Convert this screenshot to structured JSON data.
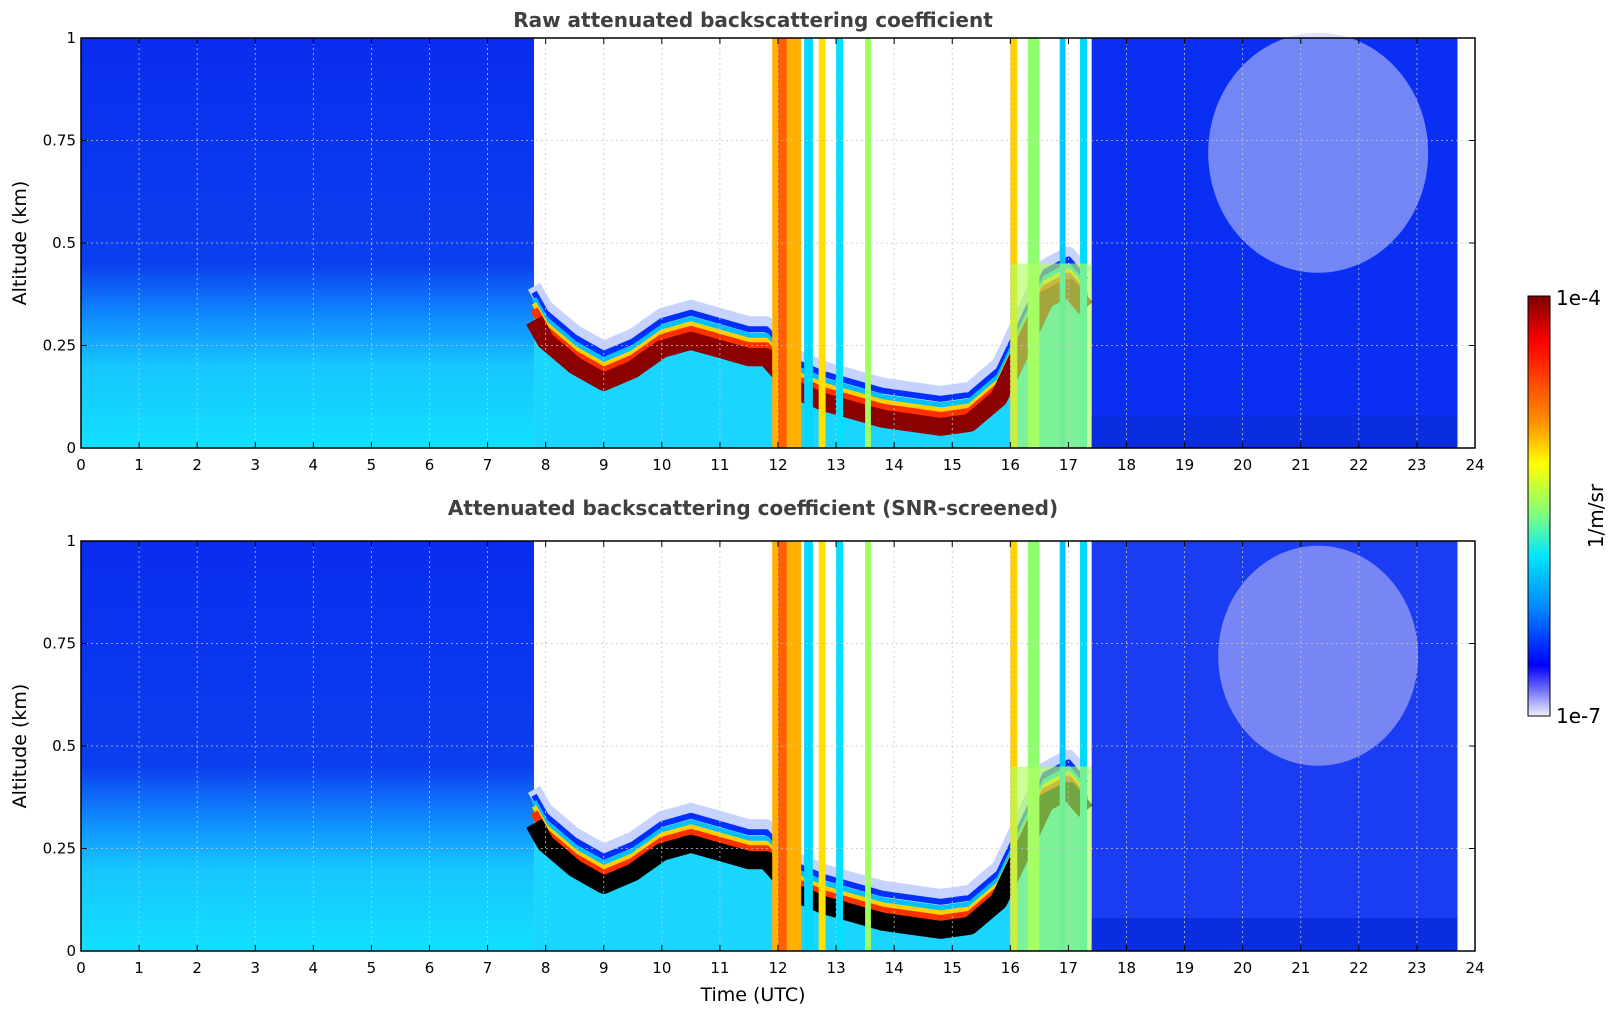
{
  "chart_data": [
    {
      "type": "heatmap",
      "title": "Raw attenuated backscattering coefficient",
      "xlabel": "",
      "ylabel": "Altitude (km)",
      "xlim": [
        0,
        24
      ],
      "ylim": [
        0,
        1
      ],
      "x_ticks": [
        "0",
        "1",
        "2",
        "3",
        "4",
        "5",
        "6",
        "7",
        "8",
        "9",
        "10",
        "11",
        "12",
        "13",
        "14",
        "15",
        "16",
        "17",
        "18",
        "19",
        "20",
        "21",
        "22",
        "23",
        "24"
      ],
      "y_ticks": [
        "0",
        "0.25",
        "0.5",
        "0.75",
        "1"
      ],
      "grid": true,
      "colormap": "jet",
      "layer_height_km": {
        "time_utc": [
          7.8,
          8.0,
          8.5,
          9.0,
          9.5,
          10.0,
          10.5,
          11.0,
          11.5,
          11.8,
          12.3,
          12.8,
          13.3,
          13.8,
          14.3,
          14.8,
          15.3,
          15.8,
          16.2,
          16.6,
          17.0,
          17.3
        ],
        "altitude_km": [
          0.37,
          0.32,
          0.26,
          0.22,
          0.25,
          0.3,
          0.32,
          0.3,
          0.28,
          0.28,
          0.2,
          0.17,
          0.15,
          0.13,
          0.12,
          0.11,
          0.12,
          0.18,
          0.3,
          0.42,
          0.45,
          0.4
        ]
      }
    },
    {
      "type": "heatmap",
      "title": "Attenuated backscattering coefficient (SNR-screened)",
      "xlabel": "Time (UTC)",
      "ylabel": "Altitude (km)",
      "xlim": [
        0,
        24
      ],
      "ylim": [
        0,
        1
      ],
      "x_ticks": [
        "0",
        "1",
        "2",
        "3",
        "4",
        "5",
        "6",
        "7",
        "8",
        "9",
        "10",
        "11",
        "12",
        "13",
        "14",
        "15",
        "16",
        "17",
        "18",
        "19",
        "20",
        "21",
        "22",
        "23",
        "24"
      ],
      "y_ticks": [
        "0",
        "0.25",
        "0.5",
        "0.75",
        "1"
      ],
      "grid": true,
      "colormap": "jet",
      "layer_height_km": {
        "time_utc": [
          7.8,
          8.0,
          8.5,
          9.0,
          9.5,
          10.0,
          10.5,
          11.0,
          11.5,
          11.8,
          12.3,
          12.8,
          13.3,
          13.8,
          14.3,
          14.8,
          15.3,
          15.8,
          16.2,
          16.6,
          17.0,
          17.3
        ],
        "altitude_km": [
          0.37,
          0.32,
          0.26,
          0.22,
          0.25,
          0.3,
          0.32,
          0.3,
          0.28,
          0.28,
          0.2,
          0.17,
          0.15,
          0.13,
          0.12,
          0.11,
          0.12,
          0.18,
          0.3,
          0.42,
          0.45,
          0.4
        ]
      }
    }
  ],
  "colorbar": {
    "label": "1/m/sr",
    "max_label": "1e-4",
    "min_label": "1e-7",
    "scale": "log",
    "colors": [
      "#7f0000",
      "#ff0000",
      "#ff7f00",
      "#ffff00",
      "#7fff7f",
      "#00ffff",
      "#007fff",
      "#0000ff",
      "#e6e6fa"
    ]
  }
}
